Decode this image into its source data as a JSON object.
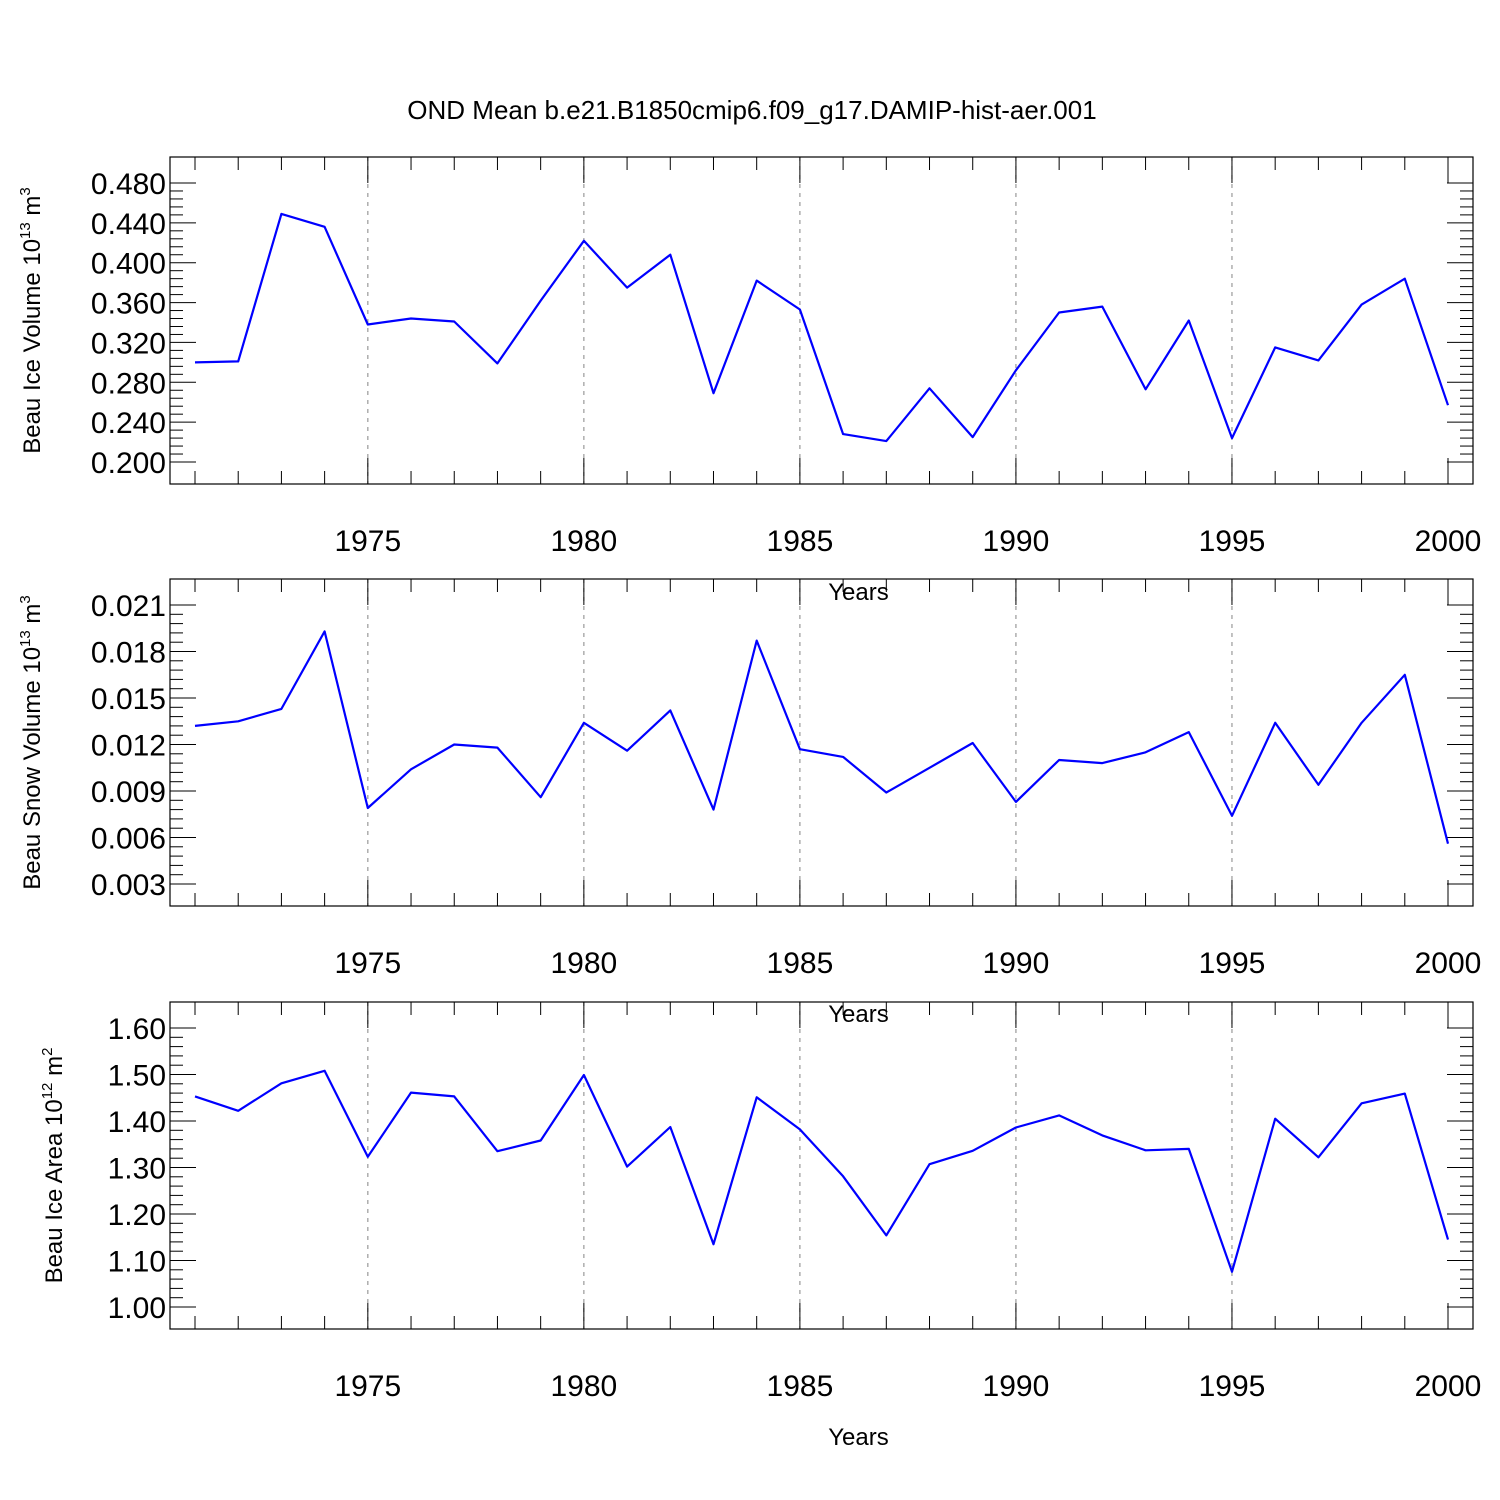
{
  "figure": {
    "title": "OND Mean b.e21.B1850cmip6.f09_g17.DAMIP-hist-aer.001"
  },
  "colors": {
    "line": "#0000ff",
    "frame": "#000000",
    "grid": "#999999"
  },
  "chart_data": [
    {
      "type": "line",
      "xlabel": "Years",
      "ylabel": {
        "base": "Beau Ice Volume 10",
        "exp": "13",
        "unit": " m",
        "unit_exp": "3"
      },
      "xlim": [
        1971,
        2000
      ],
      "ylim": [
        0.2,
        0.48
      ],
      "x_ticks": [
        1975,
        1980,
        1985,
        1990,
        1995,
        2000
      ],
      "y_ticks": [
        "0.200",
        "0.240",
        "0.280",
        "0.320",
        "0.360",
        "0.400",
        "0.440",
        "0.480"
      ],
      "y_tick_values": [
        0.2,
        0.24,
        0.28,
        0.32,
        0.36,
        0.4,
        0.44,
        0.48
      ],
      "x": [
        1971,
        1972,
        1973,
        1974,
        1975,
        1976,
        1977,
        1978,
        1979,
        1980,
        1981,
        1982,
        1983,
        1984,
        1985,
        1986,
        1987,
        1988,
        1989,
        1990,
        1991,
        1992,
        1993,
        1994,
        1995,
        1996,
        1997,
        1998,
        1999,
        2000
      ],
      "y": [
        0.3,
        0.301,
        0.449,
        0.436,
        0.338,
        0.344,
        0.341,
        0.299,
        0.362,
        0.422,
        0.375,
        0.408,
        0.269,
        0.382,
        0.353,
        0.228,
        0.221,
        0.274,
        0.225,
        0.292,
        0.35,
        0.356,
        0.273,
        0.342,
        0.224,
        0.315,
        0.302,
        0.358,
        0.384,
        0.257
      ]
    },
    {
      "type": "line",
      "xlabel": "Years",
      "ylabel": {
        "base": "Beau Snow Volume 10",
        "exp": "13",
        "unit": " m",
        "unit_exp": "3"
      },
      "xlim": [
        1971,
        2000
      ],
      "ylim": [
        0.003,
        0.021
      ],
      "x_ticks": [
        1975,
        1980,
        1985,
        1990,
        1995,
        2000
      ],
      "y_ticks": [
        "0.003",
        "0.006",
        "0.009",
        "0.012",
        "0.015",
        "0.018",
        "0.021"
      ],
      "y_tick_values": [
        0.003,
        0.006,
        0.009,
        0.012,
        0.015,
        0.018,
        0.021
      ],
      "x": [
        1971,
        1972,
        1973,
        1974,
        1975,
        1976,
        1977,
        1978,
        1979,
        1980,
        1981,
        1982,
        1983,
        1984,
        1985,
        1986,
        1987,
        1988,
        1989,
        1990,
        1991,
        1992,
        1993,
        1994,
        1995,
        1996,
        1997,
        1998,
        1999,
        2000
      ],
      "y": [
        0.0132,
        0.0135,
        0.0143,
        0.0193,
        0.0079,
        0.0104,
        0.012,
        0.0118,
        0.0086,
        0.0134,
        0.0116,
        0.0142,
        0.0078,
        0.0187,
        0.0117,
        0.0112,
        0.0089,
        0.0105,
        0.0121,
        0.0083,
        0.011,
        0.0108,
        0.0115,
        0.0128,
        0.0074,
        0.0134,
        0.0094,
        0.0134,
        0.0165,
        0.0056
      ]
    },
    {
      "type": "line",
      "xlabel": "Years",
      "ylabel": {
        "base": "Beau Ice Area 10",
        "exp": "12",
        "unit": " m",
        "unit_exp": "2"
      },
      "xlim": [
        1971,
        2000
      ],
      "ylim": [
        1.0,
        1.6
      ],
      "x_ticks": [
        1975,
        1980,
        1985,
        1990,
        1995,
        2000
      ],
      "y_ticks": [
        "1.00",
        "1.10",
        "1.20",
        "1.30",
        "1.40",
        "1.50",
        "1.60"
      ],
      "y_tick_values": [
        1.0,
        1.1,
        1.2,
        1.3,
        1.4,
        1.5,
        1.6
      ],
      "x": [
        1971,
        1972,
        1973,
        1974,
        1975,
        1976,
        1977,
        1978,
        1979,
        1980,
        1981,
        1982,
        1983,
        1984,
        1985,
        1986,
        1987,
        1988,
        1989,
        1990,
        1991,
        1992,
        1993,
        1994,
        1995,
        1996,
        1997,
        1998,
        1999,
        2000
      ],
      "y": [
        1.453,
        1.422,
        1.481,
        1.508,
        1.323,
        1.461,
        1.453,
        1.335,
        1.358,
        1.499,
        1.302,
        1.387,
        1.135,
        1.451,
        1.382,
        1.281,
        1.154,
        1.307,
        1.336,
        1.386,
        1.412,
        1.369,
        1.337,
        1.34,
        1.076,
        1.405,
        1.322,
        1.438,
        1.459,
        1.145
      ]
    }
  ]
}
